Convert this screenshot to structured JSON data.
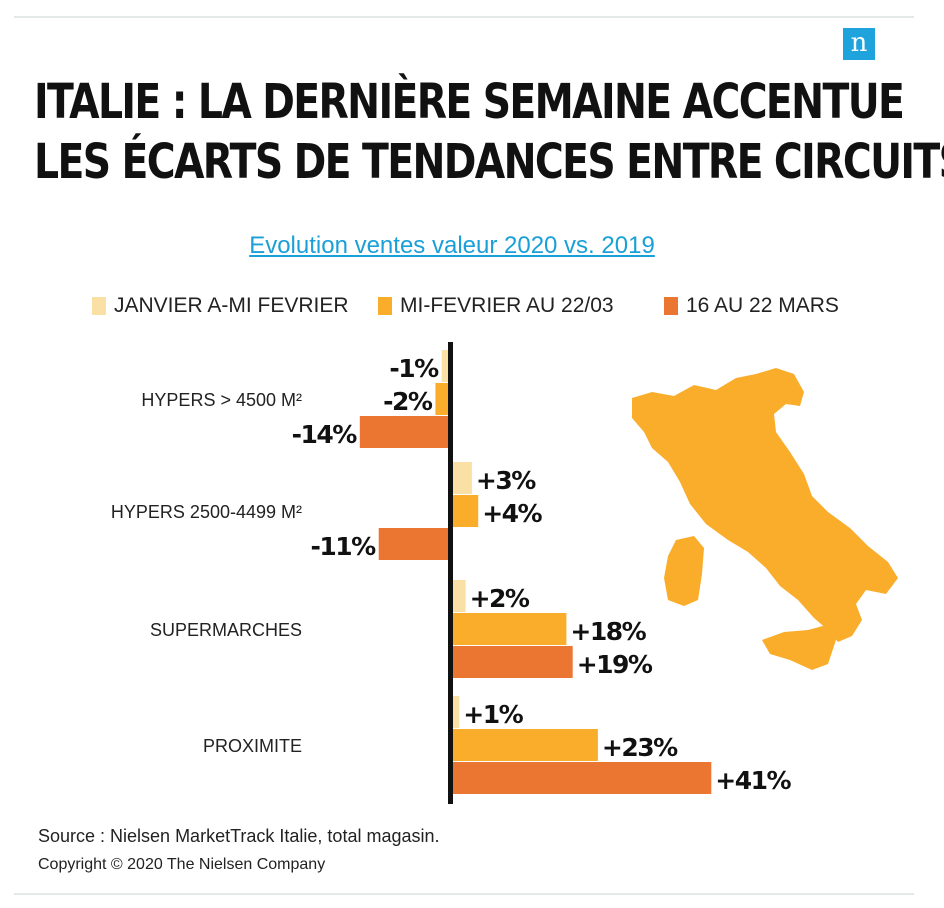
{
  "header": {
    "logo_letter": "n",
    "title_line1": "ITALIE : LA DERNIÈRE SEMAINE ACCENTUE",
    "title_line2": "LES ÉCARTS DE TENDANCES ENTRE CIRCUITS"
  },
  "chart_data": {
    "type": "bar",
    "orientation": "horizontal",
    "title": "Evolution ventes valeur 2020 vs. 2019",
    "categories": [
      "HYPERS > 4500 M²",
      "HYPERS 2500-4499 M²",
      "SUPERMARCHES",
      "PROXIMITE"
    ],
    "series": [
      {
        "name": "JANVIER A-MI FEVRIER",
        "color": "#fbe0a6",
        "values": [
          -1,
          3,
          2,
          1
        ],
        "labels": [
          "-1%",
          "+3%",
          "+2%",
          "+1%"
        ]
      },
      {
        "name": "MI-FEVRIER AU 22/03",
        "color": "#f9ad2b",
        "values": [
          -2,
          4,
          18,
          23
        ],
        "labels": [
          "-2%",
          "+4%",
          "+18%",
          "+23%"
        ]
      },
      {
        "name": "16 AU 22 MARS",
        "color": "#eb7631",
        "values": [
          -14,
          -11,
          19,
          41
        ],
        "labels": [
          "-14%",
          "-11%",
          "+19%",
          "+41%"
        ]
      }
    ],
    "legend_position": "top",
    "grid": false,
    "baseline_color": "#111111",
    "map_color": "#f9ad2b"
  },
  "footer": {
    "source": "Source : Nielsen MarketTrack Italie, total magasin.",
    "copyright": "Copyright © 2020 The Nielsen Company"
  }
}
